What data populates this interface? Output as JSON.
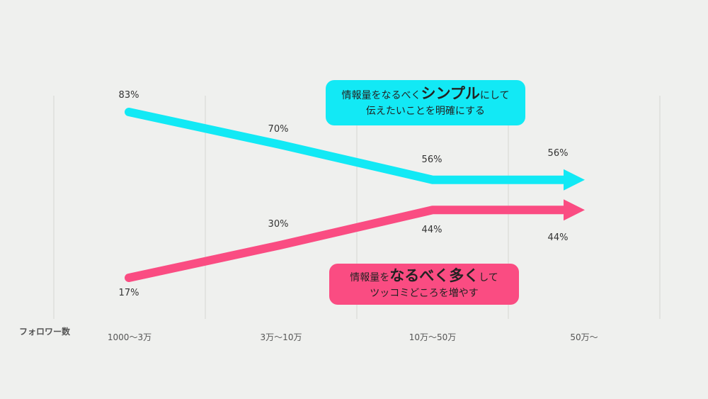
{
  "chart_data": {
    "type": "line",
    "categories": [
      "1000～3万",
      "3万～10万",
      "10万～50万",
      "50万～"
    ],
    "xlabel": "フォロワー数",
    "ylim": [
      0,
      100
    ],
    "series": [
      {
        "values": [
          83,
          70,
          56,
          56
        ],
        "labels": [
          "83%",
          "70%",
          "56%",
          "56%"
        ],
        "color": "#12e9f5"
      },
      {
        "values": [
          17,
          30,
          44,
          44
        ],
        "labels": [
          "17%",
          "30%",
          "44%",
          "44%"
        ],
        "color": "#fa4c82"
      }
    ],
    "annotations": {
      "cyan": {
        "line1_a": "情報量をなるべく",
        "line1_em": "シンプル",
        "line1_b": "にして",
        "line2": "伝えたいことを明確にする"
      },
      "pink": {
        "line1_a": "情報量を",
        "line1_em": "なるべく多く",
        "line1_b": "して",
        "line2": "ツッコミどころを増やす"
      }
    }
  }
}
